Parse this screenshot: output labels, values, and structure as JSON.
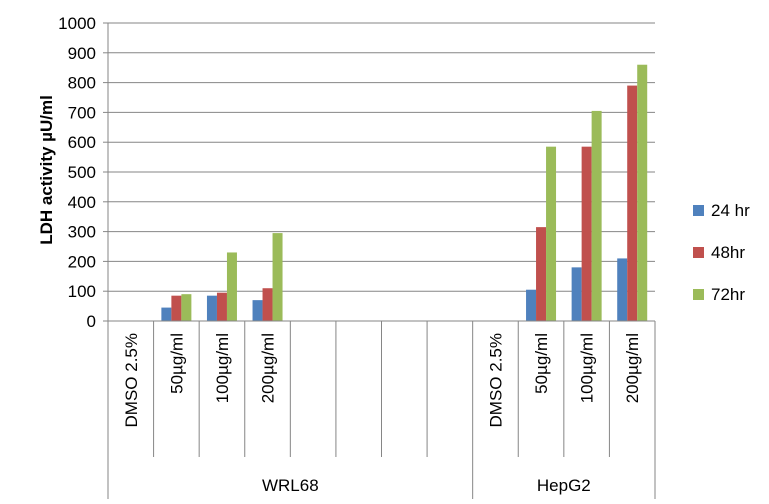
{
  "chart_data": {
    "type": "bar",
    "title": "",
    "xlabel": "",
    "ylabel": "LDH activity µU/ml",
    "ylim": [
      0,
      1000
    ],
    "yticks": [
      0,
      100,
      200,
      300,
      400,
      500,
      600,
      700,
      800,
      900,
      1000
    ],
    "grid": true,
    "legend_position": "right",
    "categories": [
      "DMSO 2.5%",
      "50µg/ml",
      "100µg/ml",
      "200µg/ml",
      "",
      "",
      "",
      "",
      "DMSO 2.5%",
      "50µg/ml",
      "100µg/ml",
      "200µg/ml"
    ],
    "groups": [
      {
        "label": "WRL68",
        "span": 8
      },
      {
        "label": "HepG2",
        "span": 4
      }
    ],
    "series": [
      {
        "name": "24 hr",
        "color": "#4f81bd",
        "values": [
          0,
          45,
          85,
          70,
          null,
          null,
          null,
          null,
          0,
          105,
          180,
          210
        ]
      },
      {
        "name": "48hr",
        "color": "#c0504d",
        "values": [
          0,
          85,
          95,
          110,
          null,
          null,
          null,
          null,
          0,
          315,
          585,
          790
        ]
      },
      {
        "name": "72hr",
        "color": "#9bbb59",
        "values": [
          0,
          90,
          230,
          295,
          null,
          null,
          null,
          null,
          0,
          585,
          705,
          860
        ]
      }
    ]
  }
}
